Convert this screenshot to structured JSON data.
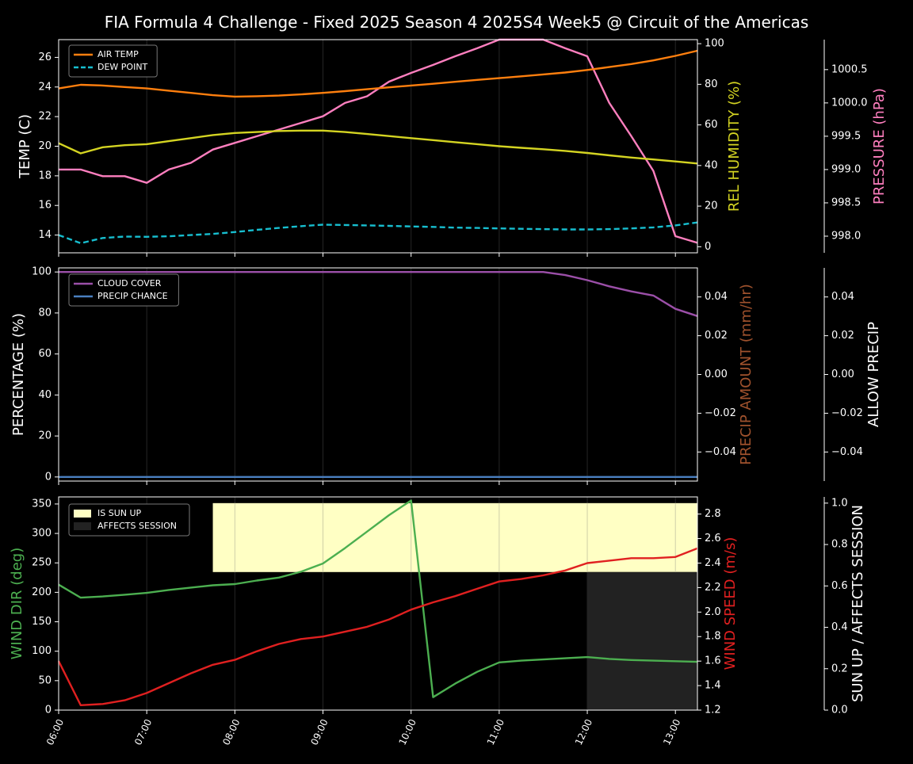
{
  "title": "FIA Formula 4 Challenge - Fixed 2025 Season 4 2025S4 Week5 @ Circuit of the Americas",
  "colors": {
    "air_temp": "#ff7f0e",
    "dew_point": "#17becf",
    "humidity": "#d4d422",
    "pressure": "#ff7fbf",
    "cloud": "#9b4fa8",
    "precip_chance": "#4a7fc0",
    "precip_amount_label": "#a0522d",
    "wind_dir": "#4caf50",
    "wind_speed": "#e02020",
    "sun_up": "#ffffc4",
    "affects": "#222222"
  },
  "chart_data": [
    {
      "type": "line",
      "panel": "temperature",
      "x": [
        "06:00",
        "06:15",
        "06:30",
        "06:45",
        "07:00",
        "07:15",
        "07:30",
        "07:45",
        "08:00",
        "08:15",
        "08:30",
        "08:45",
        "09:00",
        "09:15",
        "09:30",
        "09:45",
        "10:00",
        "10:15",
        "10:30",
        "10:45",
        "11:00",
        "11:15",
        "11:30",
        "11:45",
        "12:00",
        "12:15",
        "12:30",
        "12:45",
        "13:00",
        "13:15"
      ],
      "xticks": [
        "06:00",
        "07:00",
        "08:00",
        "09:00",
        "10:00",
        "11:00",
        "12:00",
        "13:00"
      ],
      "ylabel": "TEMP (C)",
      "ylim": [
        12.8,
        27.2
      ],
      "yticks": [
        14,
        16,
        18,
        20,
        22,
        24,
        26
      ],
      "ylabel_right": "REL HUMIDITY (%)",
      "ylim_right": [
        -3,
        102
      ],
      "yticks_right": [
        0,
        20,
        40,
        60,
        80,
        100
      ],
      "ylabel_right2": "PRESSURE (hPa)",
      "ylim_right2": [
        997.75,
        1000.95
      ],
      "yticks_right2": [
        "998.0",
        "998.5",
        "999.0",
        "999.5",
        "1000.0",
        "1000.5"
      ],
      "legend": "top-left",
      "series": [
        {
          "name": "AIR TEMP",
          "axis": "left",
          "values": [
            23.9,
            24.15,
            24.1,
            24.0,
            23.9,
            23.75,
            23.6,
            23.45,
            23.35,
            23.38,
            23.42,
            23.5,
            23.6,
            23.72,
            23.85,
            23.98,
            24.1,
            24.22,
            24.35,
            24.48,
            24.6,
            24.72,
            24.85,
            24.98,
            25.15,
            25.35,
            25.55,
            25.8,
            26.1,
            26.45
          ]
        },
        {
          "name": "DEW POINT",
          "axis": "left",
          "values": [
            14.0,
            13.45,
            13.8,
            13.9,
            13.88,
            13.92,
            14.0,
            14.08,
            14.2,
            14.35,
            14.48,
            14.6,
            14.7,
            14.68,
            14.65,
            14.62,
            14.58,
            14.55,
            14.5,
            14.48,
            14.45,
            14.42,
            14.4,
            14.38,
            14.38,
            14.4,
            14.45,
            14.52,
            14.65,
            14.85
          ]
        },
        {
          "name": "REL HUMIDITY",
          "axis": "right",
          "values": [
            51,
            46,
            49,
            50,
            50.5,
            52,
            53.5,
            55,
            56,
            56.5,
            57,
            57.2,
            57.2,
            56.5,
            55.5,
            54.5,
            53.5,
            52.5,
            51.5,
            50.5,
            49.5,
            48.7,
            48,
            47.2,
            46.2,
            45,
            43.9,
            43,
            42,
            41
          ]
        },
        {
          "name": "PRESSURE",
          "axis": "right2",
          "values": [
            999.0,
            999.0,
            998.9,
            998.9,
            998.8,
            999.0,
            999.1,
            999.3,
            999.4,
            999.5,
            999.6,
            999.7,
            999.8,
            1000.0,
            1000.1,
            1000.32,
            1000.45,
            1000.57,
            1000.7,
            1000.82,
            1000.95,
            1000.95,
            1000.95,
            1000.82,
            1000.7,
            1000.0,
            999.5,
            998.98,
            998.0,
            997.9
          ]
        }
      ]
    },
    {
      "type": "line",
      "panel": "precipitation",
      "x": [
        "06:00",
        "06:15",
        "06:30",
        "06:45",
        "07:00",
        "07:15",
        "07:30",
        "07:45",
        "08:00",
        "08:15",
        "08:30",
        "08:45",
        "09:00",
        "09:15",
        "09:30",
        "09:45",
        "10:00",
        "10:15",
        "10:30",
        "10:45",
        "11:00",
        "11:15",
        "11:30",
        "11:45",
        "12:00",
        "12:15",
        "12:30",
        "12:45",
        "13:00",
        "13:15"
      ],
      "ylabel": "PERCENTAGE (%)",
      "ylim": [
        -2,
        102
      ],
      "yticks": [
        0,
        20,
        40,
        60,
        80,
        100
      ],
      "ylabel_right": "PRECIP AMOUNT (mm/hr)",
      "ylim_right": [
        -0.055,
        0.055
      ],
      "yticks_right": [
        "−0.04",
        "−0.02",
        "0.00",
        "0.02",
        "0.04"
      ],
      "ylabel_right2": "ALLOW PRECIP",
      "ylim_right2": [
        -0.055,
        0.055
      ],
      "yticks_right2": [
        "−0.04",
        "−0.02",
        "0.00",
        "0.02",
        "0.04"
      ],
      "legend": "top-left",
      "series": [
        {
          "name": "CLOUD COVER",
          "values": [
            100,
            100,
            100,
            100,
            100,
            100,
            100,
            100,
            100,
            100,
            100,
            100,
            100,
            100,
            100,
            100,
            100,
            100,
            100,
            100,
            100,
            100,
            100,
            98.5,
            96,
            93,
            90.5,
            88.5,
            82,
            78.5
          ]
        },
        {
          "name": "PRECIP CHANCE",
          "values": [
            0,
            0,
            0,
            0,
            0,
            0,
            0,
            0,
            0,
            0,
            0,
            0,
            0,
            0,
            0,
            0,
            0,
            0,
            0,
            0,
            0,
            0,
            0,
            0,
            0,
            0,
            0,
            0,
            0,
            0
          ]
        }
      ]
    },
    {
      "type": "line",
      "panel": "wind",
      "x": [
        "06:00",
        "06:15",
        "06:30",
        "06:45",
        "07:00",
        "07:15",
        "07:30",
        "07:45",
        "08:00",
        "08:15",
        "08:30",
        "08:45",
        "09:00",
        "09:15",
        "09:30",
        "09:45",
        "10:00",
        "10:15",
        "10:30",
        "10:45",
        "11:00",
        "11:15",
        "11:30",
        "11:45",
        "12:00",
        "12:15",
        "12:30",
        "12:45",
        "13:00",
        "13:15"
      ],
      "xticks": [
        "06:00",
        "07:00",
        "08:00",
        "09:00",
        "10:00",
        "11:00",
        "12:00",
        "13:00"
      ],
      "ylabel": "WIND DIR (deg)",
      "ylim": [
        0,
        362
      ],
      "yticks": [
        0,
        50,
        100,
        150,
        200,
        250,
        300,
        350
      ],
      "ylabel_right": "WIND SPEED (m/s)",
      "ylim_right": [
        1.2,
        2.94
      ],
      "yticks_right": [
        "1.2",
        "1.4",
        "1.6",
        "1.8",
        "2.0",
        "2.2",
        "2.4",
        "2.6",
        "2.8"
      ],
      "ylabel_right2": "SUN UP / AFFECTS SESSION",
      "ylim_right2": [
        0,
        1.03
      ],
      "yticks_right2": [
        "0.0",
        "0.2",
        "0.4",
        "0.6",
        "0.8",
        "1.0"
      ],
      "legend": "top-left",
      "series": [
        {
          "name": "WIND DIR",
          "axis": "left",
          "values": [
            213,
            191,
            193,
            196,
            199,
            204,
            208,
            212,
            214,
            220,
            225,
            235,
            249,
            275,
            303,
            331,
            356,
            22,
            45,
            65,
            81,
            84,
            86,
            88,
            90,
            87,
            85,
            84,
            83,
            82
          ]
        },
        {
          "name": "WIND SPEED",
          "axis": "right",
          "values": [
            1.6,
            1.24,
            1.25,
            1.28,
            1.34,
            1.42,
            1.5,
            1.57,
            1.61,
            1.68,
            1.74,
            1.78,
            1.8,
            1.84,
            1.88,
            1.94,
            2.02,
            2.08,
            2.13,
            2.19,
            2.25,
            2.27,
            2.3,
            2.34,
            2.4,
            2.42,
            2.44,
            2.44,
            2.45,
            2.52
          ]
        }
      ],
      "bands": [
        {
          "name": "IS SUN UP",
          "x_start": "07:45",
          "x_end": "13:15",
          "y_bottom": 0.667,
          "y_top": 1.0
        },
        {
          "name": "AFFECTS SESSION",
          "x_start": "12:00",
          "x_end": "13:15",
          "y_bottom": 0.0,
          "y_top": 0.667
        }
      ]
    }
  ]
}
